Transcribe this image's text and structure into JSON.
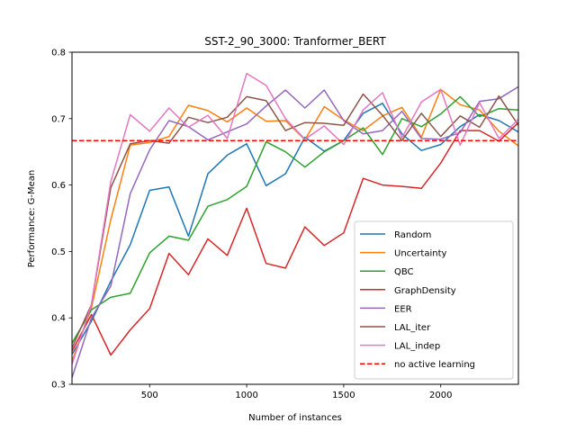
{
  "chart_data": {
    "type": "line",
    "title": "SST-2_90_3000: Tranformer_BERT",
    "xlabel": "Number of instances",
    "ylabel": "Performance: G-Mean",
    "xlim": [
      100,
      2400
    ],
    "ylim": [
      0.3,
      0.8
    ],
    "xticks": [
      500,
      1000,
      1500,
      2000
    ],
    "yticks": [
      0.3,
      0.4,
      0.5,
      0.6,
      0.7,
      0.8
    ],
    "xtick_labels": [
      "500",
      "1000",
      "1500",
      "2000"
    ],
    "ytick_labels": [
      "0.3",
      "0.4",
      "0.5",
      "0.6",
      "0.7",
      "0.8"
    ],
    "grid": false,
    "legend_position": "lower right",
    "x": [
      100,
      200,
      300,
      400,
      500,
      600,
      700,
      800,
      900,
      1000,
      1100,
      1200,
      1300,
      1400,
      1500,
      1600,
      1700,
      1800,
      1900,
      2000,
      2100,
      2200,
      2300,
      2400
    ],
    "series": [
      {
        "name": "Random",
        "color": "#1f77b4",
        "style": "solid",
        "values": [
          0.345,
          0.395,
          0.455,
          0.51,
          0.592,
          0.597,
          0.523,
          0.617,
          0.645,
          0.662,
          0.599,
          0.617,
          0.672,
          0.651,
          0.667,
          0.708,
          0.723,
          0.677,
          0.652,
          0.661,
          0.688,
          0.706,
          0.697,
          0.68
        ]
      },
      {
        "name": "Uncertainty",
        "color": "#ff7f0e",
        "style": "solid",
        "values": [
          0.335,
          0.415,
          0.548,
          0.66,
          0.664,
          0.673,
          0.72,
          0.712,
          0.695,
          0.716,
          0.696,
          0.697,
          0.668,
          0.718,
          0.698,
          0.682,
          0.704,
          0.717,
          0.672,
          0.744,
          0.721,
          0.713,
          0.681,
          0.659
        ]
      },
      {
        "name": "QBC",
        "color": "#2ca02c",
        "style": "solid",
        "values": [
          0.362,
          0.412,
          0.431,
          0.437,
          0.498,
          0.523,
          0.517,
          0.568,
          0.578,
          0.598,
          0.665,
          0.65,
          0.627,
          0.65,
          0.667,
          0.686,
          0.646,
          0.7,
          0.688,
          0.707,
          0.733,
          0.703,
          0.715,
          0.713
        ]
      },
      {
        "name": "GraphDensity",
        "color": "#d62728",
        "style": "solid",
        "values": [
          0.35,
          0.405,
          0.344,
          0.382,
          0.414,
          0.497,
          0.465,
          0.519,
          0.494,
          0.565,
          0.482,
          0.475,
          0.537,
          0.509,
          0.528,
          0.61,
          0.6,
          0.598,
          0.595,
          0.633,
          0.682,
          0.682,
          0.666,
          0.694
        ]
      },
      {
        "name": "EER",
        "color": "#9467bd",
        "style": "solid",
        "values": [
          0.31,
          0.4,
          0.448,
          0.587,
          0.653,
          0.697,
          0.688,
          0.668,
          0.68,
          0.692,
          0.719,
          0.743,
          0.716,
          0.743,
          0.697,
          0.677,
          0.682,
          0.711,
          0.67,
          0.669,
          0.679,
          0.726,
          0.73,
          0.748
        ]
      },
      {
        "name": "LAL_iter",
        "color": "#8c564b",
        "style": "solid",
        "values": [
          0.355,
          0.42,
          0.596,
          0.662,
          0.667,
          0.663,
          0.702,
          0.694,
          0.702,
          0.733,
          0.727,
          0.682,
          0.694,
          0.693,
          0.69,
          0.737,
          0.705,
          0.667,
          0.708,
          0.673,
          0.704,
          0.687,
          0.734,
          0.69
        ]
      },
      {
        "name": "LAL_indep",
        "color": "#e377c2",
        "style": "solid",
        "values": [
          0.33,
          0.42,
          0.605,
          0.706,
          0.681,
          0.716,
          0.687,
          0.705,
          0.67,
          0.768,
          0.75,
          0.7,
          0.669,
          0.689,
          0.661,
          0.713,
          0.739,
          0.671,
          0.725,
          0.744,
          0.66,
          0.724,
          0.67,
          0.699
        ]
      },
      {
        "name": "no active learning",
        "color": "#ff0000",
        "style": "dashed",
        "values": [
          0.667,
          0.667,
          0.667,
          0.667,
          0.667,
          0.667,
          0.667,
          0.667,
          0.667,
          0.667,
          0.667,
          0.667,
          0.667,
          0.667,
          0.667,
          0.667,
          0.667,
          0.667,
          0.667,
          0.667,
          0.667,
          0.667,
          0.667,
          0.667
        ]
      }
    ]
  }
}
